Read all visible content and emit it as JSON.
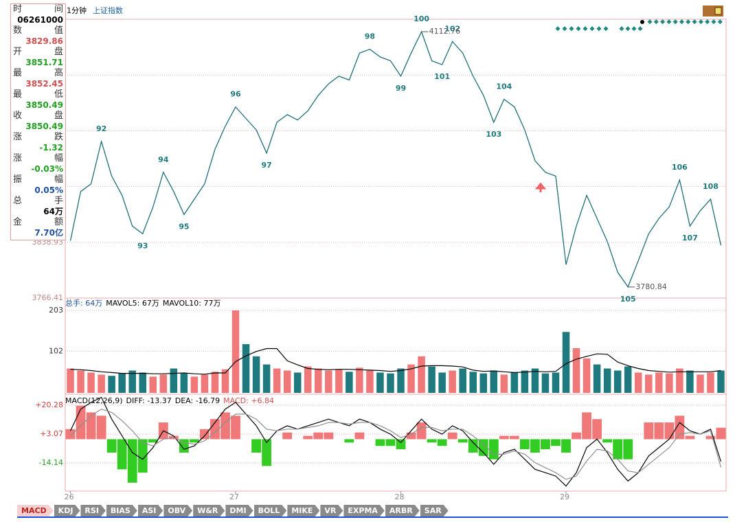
{
  "header": {
    "period": "1分钟",
    "index_name": "上证指数"
  },
  "info_panel": {
    "rows": [
      {
        "label": "时间",
        "value": "06261000",
        "color": "#000000"
      },
      {
        "label": "数值",
        "value": "3829.86",
        "color": "#d05050"
      },
      {
        "label": "开盘",
        "value": "3851.71",
        "color": "#20a020"
      },
      {
        "label": "最高",
        "value": "3852.45",
        "color": "#d05050"
      },
      {
        "label": "最低",
        "value": "3850.49",
        "color": "#20a020"
      },
      {
        "label": "收盘",
        "value": "3850.49",
        "color": "#20a020"
      },
      {
        "label": "涨跌",
        "value": "-1.32",
        "color": "#20a020"
      },
      {
        "label": "涨幅",
        "value": "-0.03%",
        "color": "#20a020"
      },
      {
        "label": "振幅",
        "value": "0.05%",
        "color": "#2050a0"
      },
      {
        "label": "总手",
        "value": "64万",
        "color": "#000000"
      },
      {
        "label": "金额",
        "value": "7.70亿",
        "color": "#2050a0"
      }
    ]
  },
  "tabs": [
    "MACD",
    "KDJ",
    "RSI",
    "BIAS",
    "ASI",
    "OBV",
    "W&R",
    "DMI",
    "BOLL",
    "MIKE",
    "VR",
    "EXPMA",
    "ARBR",
    "SAR"
  ],
  "active_tab": "MACD",
  "chart_data": [
    {
      "type": "line",
      "color": "#1f6f78",
      "x": [
        0,
        1,
        2,
        3,
        4,
        5,
        6,
        7,
        8,
        9,
        10,
        11,
        12,
        13,
        14,
        15,
        16,
        17,
        18,
        19,
        20,
        21,
        22,
        23,
        24,
        25,
        26,
        27,
        28,
        29,
        30,
        31,
        32,
        33,
        34,
        35,
        36,
        37,
        38,
        39,
        40,
        41,
        42,
        43,
        44,
        45,
        46,
        47,
        48,
        49,
        50,
        51,
        52,
        53,
        54,
        55,
        56,
        57,
        58,
        59,
        60,
        61,
        62,
        63
      ],
      "values": [
        3841,
        3905,
        3915,
        3970,
        3925,
        3900,
        3860,
        3850,
        3885,
        3930,
        3905,
        3875,
        3895,
        3915,
        3960,
        3990,
        4015,
        4000,
        3985,
        3955,
        3995,
        4005,
        3998,
        4010,
        4030,
        4045,
        4055,
        4050,
        4085,
        4090,
        4080,
        4075,
        4055,
        4085,
        4112.76,
        4075,
        4070,
        4100,
        4085,
        4055,
        4030,
        3995,
        4025,
        4015,
        3985,
        3945,
        3930,
        3925,
        3810,
        3860,
        3900,
        3870,
        3840,
        3800,
        3780.84,
        3815,
        3850,
        3870,
        3885,
        3920,
        3860,
        3880,
        3895,
        3835
      ],
      "xlim": [
        -0.5,
        63.5
      ],
      "xticks": [
        {
          "value": 0,
          "label": "26"
        },
        {
          "value": 16,
          "label": "27"
        },
        {
          "value": 32,
          "label": "28"
        },
        {
          "value": 48,
          "label": "29"
        }
      ],
      "ylim": [
        3766.41,
        4129.01
      ],
      "yticks": [
        3766.41,
        3838.93
      ],
      "grid": true,
      "annotations": [
        {
          "x": 3,
          "label": "92"
        },
        {
          "x": 7,
          "label": "93"
        },
        {
          "x": 9,
          "label": "94"
        },
        {
          "x": 11,
          "label": "95"
        },
        {
          "x": 16,
          "label": "96"
        },
        {
          "x": 19,
          "label": "97"
        },
        {
          "x": 29,
          "label": "98"
        },
        {
          "x": 32,
          "label": "99"
        },
        {
          "x": 34,
          "label": "100"
        },
        {
          "x": 36,
          "label": "101"
        },
        {
          "x": 37,
          "label": "102"
        },
        {
          "x": 41,
          "label": "103"
        },
        {
          "x": 42,
          "label": "104"
        },
        {
          "x": 54,
          "label": "105"
        },
        {
          "x": 59,
          "label": "106"
        },
        {
          "x": 60,
          "label": "107"
        },
        {
          "x": 62,
          "label": "108"
        }
      ],
      "extremes": [
        {
          "x": 34,
          "value": 4112.76
        },
        {
          "x": 54,
          "value": 3780.84
        }
      ]
    },
    {
      "type": "bar",
      "color_rule": "price_change",
      "up_color": "#f07878",
      "down_color": "#1f7a80",
      "header": [
        {
          "text": "总手: 64万",
          "color": "#2050a0"
        },
        {
          "text": "MAVOL5: 67万",
          "color": "#000000"
        },
        {
          "text": "MAVOL10: 77万",
          "color": "#000000"
        }
      ],
      "values": [
        60,
        55,
        50,
        45,
        42,
        48,
        55,
        50,
        40,
        45,
        60,
        48,
        40,
        45,
        52,
        58,
        203,
        120,
        90,
        70,
        60,
        55,
        50,
        65,
        60,
        55,
        58,
        52,
        62,
        55,
        50,
        48,
        60,
        70,
        90,
        65,
        50,
        55,
        60,
        52,
        48,
        55,
        45,
        50,
        55,
        60,
        48,
        50,
        150,
        110,
        85,
        70,
        60,
        55,
        65,
        50,
        45,
        50,
        48,
        60,
        55,
        45,
        50,
        55
      ],
      "series": [
        {
          "color": "#000000",
          "values": [
            58,
            57,
            55,
            52,
            50,
            48,
            48,
            48,
            47,
            47,
            48,
            49,
            47,
            46,
            49,
            49,
            77,
            91,
            102,
            109,
            109,
            79,
            69,
            60,
            58,
            57,
            58,
            58,
            57,
            56,
            55,
            53,
            55,
            59,
            66,
            67,
            67,
            66,
            64,
            56,
            53,
            54,
            52,
            50,
            51,
            53,
            52,
            53,
            72,
            83,
            90,
            96,
            95,
            76,
            67,
            60,
            55,
            53,
            51,
            52,
            52,
            52,
            52,
            55
          ]
        }
      ],
      "ylim": [
        0,
        230
      ],
      "yticks": [
        102,
        203
      ],
      "grid": true
    },
    {
      "type": "bar",
      "color_rule": "sign",
      "up_color": "#f07878",
      "down_color": "#33cc22",
      "header": [
        {
          "text": "MACD(12,26,9)",
          "color": "#000000"
        },
        {
          "text": "DIFF: -13.37",
          "color": "#000000"
        },
        {
          "text": "DEA: -16.79",
          "color": "#000000"
        },
        {
          "text": "MACD: +6.84",
          "color": "#d05050"
        }
      ],
      "values": [
        6,
        20,
        16,
        14,
        -8,
        -18,
        -26,
        -20,
        -2,
        10,
        2,
        -8,
        -2,
        6,
        12,
        16,
        14,
        0,
        -8,
        -16,
        0,
        4,
        0,
        2,
        4,
        4,
        0,
        -2,
        4,
        0,
        -4,
        -4,
        -6,
        4,
        10,
        -2,
        -4,
        4,
        -2,
        -8,
        -10,
        -12,
        2,
        2,
        -6,
        -8,
        -6,
        -4,
        -8,
        4,
        16,
        12,
        -2,
        -12,
        -12,
        0,
        10,
        10,
        10,
        14,
        2,
        0,
        2,
        6.84
      ],
      "series": [
        {
          "color": "#000000",
          "values": [
            5,
            18,
            22,
            25,
            12,
            2,
            -8,
            -12,
            -5,
            5,
            2,
            -6,
            -4,
            2,
            10,
            18,
            22,
            15,
            8,
            -2,
            5,
            8,
            6,
            8,
            10,
            12,
            10,
            8,
            12,
            10,
            6,
            3,
            -2,
            5,
            12,
            6,
            3,
            8,
            5,
            -2,
            -8,
            -15,
            -8,
            -6,
            -12,
            -18,
            -20,
            -22,
            -28,
            -20,
            -5,
            0,
            -8,
            -18,
            -25,
            -20,
            -10,
            -5,
            0,
            10,
            5,
            3,
            6,
            -13.37
          ]
        },
        {
          "color": "#909090",
          "values": [
            2,
            8,
            14,
            18,
            16,
            11,
            5,
            -2,
            -4,
            0,
            1,
            -2,
            -3,
            -1,
            4,
            10,
            15,
            15,
            12,
            6,
            5,
            6,
            6,
            7,
            8,
            10,
            10,
            9,
            10,
            10,
            8,
            5,
            1,
            3,
            7,
            7,
            5,
            6,
            6,
            2,
            -3,
            -9,
            -9,
            -7,
            -9,
            -14,
            -17,
            -20,
            -24,
            -22,
            -13,
            -6,
            -7,
            -12,
            -19,
            -20,
            -15,
            -10,
            -5,
            3,
            4,
            3,
            5,
            -16.79
          ]
        }
      ],
      "ylim": [
        -31,
        25.2
      ],
      "yticks": [
        {
          "value": 20.28,
          "label": "+20.28"
        },
        {
          "value": 3.07,
          "label": "+3.07"
        },
        -14.14
      ],
      "grid": true
    }
  ]
}
